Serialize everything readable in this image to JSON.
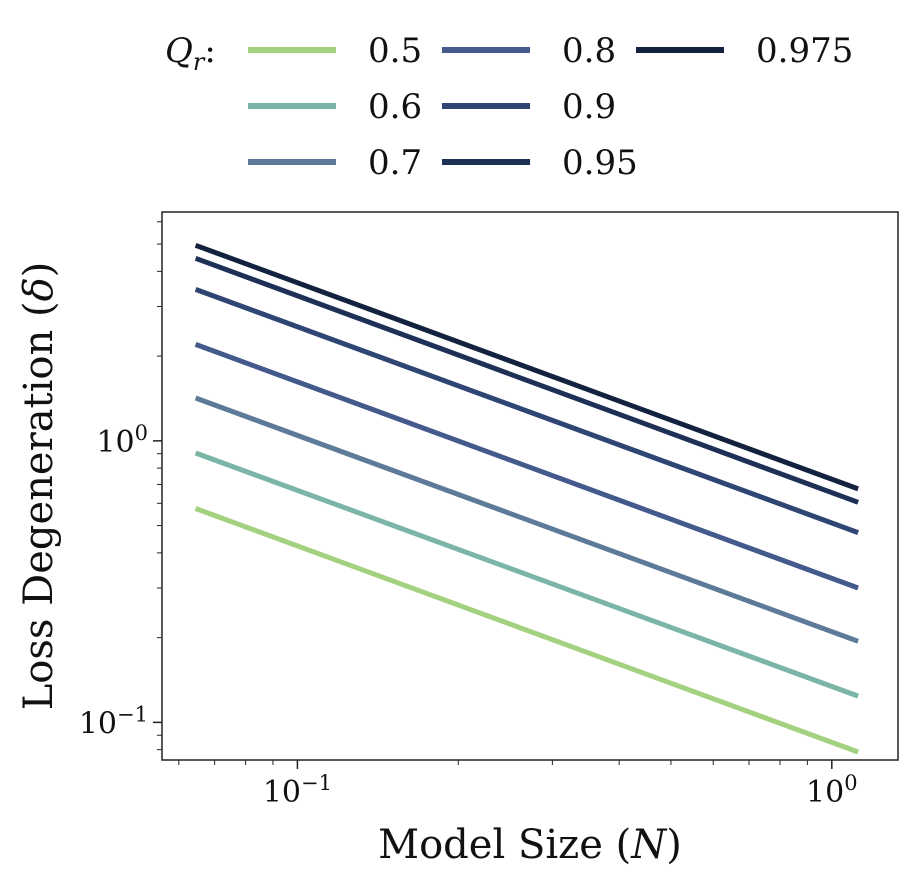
{
  "chart_data": {
    "type": "line",
    "xscale": "log",
    "yscale": "log",
    "xlim": [
      0.0558,
      1.33
    ],
    "ylim": [
      0.0735,
      6.5
    ],
    "xlabel": {
      "prefix": "Model Size (",
      "var": "N",
      "suffix": ")"
    },
    "ylabel": {
      "prefix": "Loss Degeneration (",
      "var": "δ",
      "suffix": ")"
    },
    "x_ticks": [
      {
        "value": 0.1,
        "base": "10",
        "exp": "−1"
      },
      {
        "value": 1.0,
        "base": "10",
        "exp": "0"
      }
    ],
    "y_ticks": [
      {
        "value": 0.1,
        "base": "10",
        "exp": "−1"
      },
      {
        "value": 1.0,
        "base": "10",
        "exp": "0"
      }
    ],
    "legend": {
      "title_var": "Q",
      "title_sub": "r",
      "title_suffix": ":",
      "placement": "top-center",
      "ncol": 3
    },
    "series": [
      {
        "name": "0.5",
        "color": "#a3d17f",
        "points": [
          [
            0.0645,
            0.575
          ],
          [
            1.12,
            0.0785
          ]
        ]
      },
      {
        "name": "0.6",
        "color": "#7ab5a7",
        "points": [
          [
            0.0645,
            0.905
          ],
          [
            1.12,
            0.124
          ]
        ]
      },
      {
        "name": "0.7",
        "color": "#5d7a98",
        "points": [
          [
            0.0645,
            1.42
          ],
          [
            1.12,
            0.194
          ]
        ]
      },
      {
        "name": "0.8",
        "color": "#44598c",
        "points": [
          [
            0.0645,
            2.2
          ],
          [
            1.12,
            0.3
          ]
        ]
      },
      {
        "name": "0.9",
        "color": "#2f4574",
        "points": [
          [
            0.0645,
            3.45
          ],
          [
            1.12,
            0.472
          ]
        ]
      },
      {
        "name": "0.95",
        "color": "#1f3057",
        "points": [
          [
            0.0645,
            4.45
          ],
          [
            1.12,
            0.605
          ]
        ]
      },
      {
        "name": "0.975",
        "color": "#13223f",
        "points": [
          [
            0.0645,
            4.95
          ],
          [
            1.12,
            0.675
          ]
        ]
      }
    ]
  }
}
